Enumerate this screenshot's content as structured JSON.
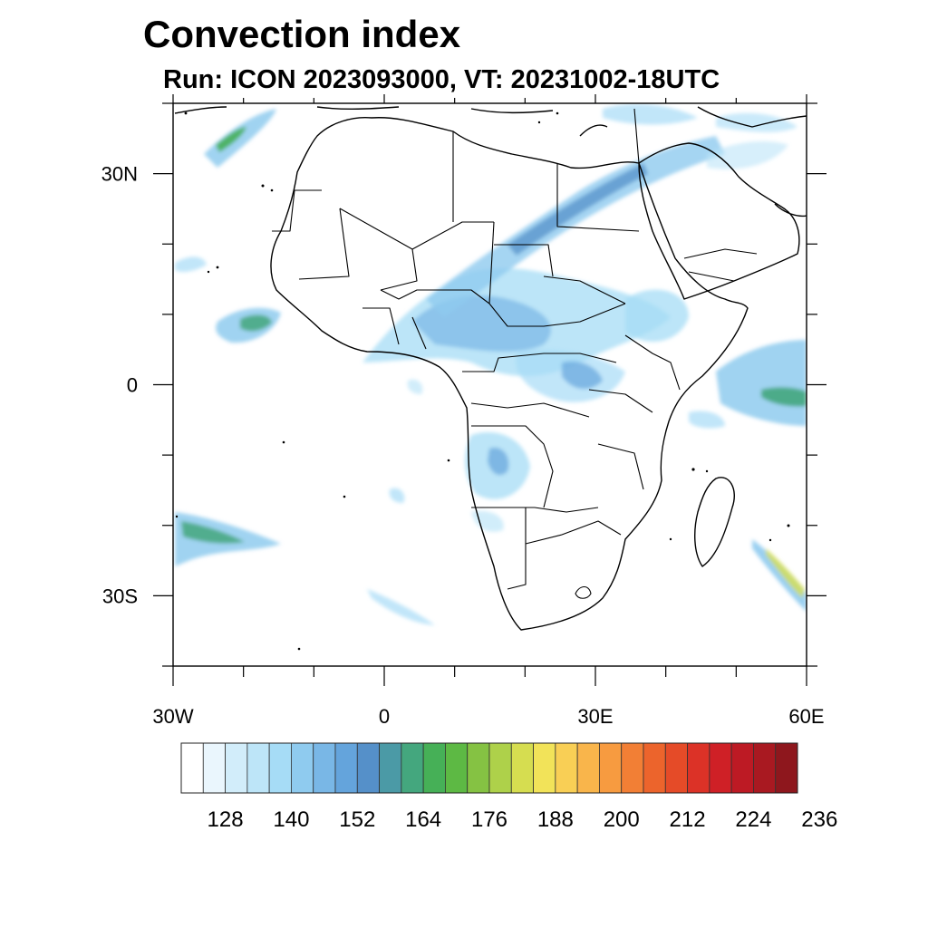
{
  "title": "Convection index",
  "subtitle": "Run: ICON 2023093000,  VT: 20231002-18UTC",
  "map": {
    "lon_range": [
      -30,
      60
    ],
    "lat_range": [
      -40,
      40
    ],
    "x_ticks": [
      {
        "lon": -30,
        "label": "30W"
      },
      {
        "lon": 0,
        "label": "0"
      },
      {
        "lon": 30,
        "label": "30E"
      },
      {
        "lon": 60,
        "label": "60E"
      }
    ],
    "y_ticks": [
      {
        "lat": 30,
        "label": "30N"
      },
      {
        "lat": 0,
        "label": "0"
      },
      {
        "lat": -30,
        "label": "30S"
      }
    ]
  },
  "colorbar": {
    "colors": [
      "#ffffff",
      "#eaf6fd",
      "#d2edfa",
      "#bde5f8",
      "#a6dcf6",
      "#8fcbef",
      "#79b7e6",
      "#64a4dc",
      "#5590c9",
      "#4b9aa6",
      "#44a77e",
      "#46b057",
      "#5db944",
      "#85c243",
      "#aed14a",
      "#d6dd50",
      "#f2e359",
      "#f9cf55",
      "#f9b54b",
      "#f79b40",
      "#f27f35",
      "#ec642c",
      "#e54b28",
      "#dc3227",
      "#cf2026",
      "#bd1a24",
      "#a91921",
      "#8e171d"
    ],
    "labels": [
      {
        "edge": 2,
        "text": "128"
      },
      {
        "edge": 5,
        "text": "140"
      },
      {
        "edge": 8,
        "text": "152"
      },
      {
        "edge": 11,
        "text": "164"
      },
      {
        "edge": 14,
        "text": "176"
      },
      {
        "edge": 17,
        "text": "188"
      },
      {
        "edge": 20,
        "text": "200"
      },
      {
        "edge": 23,
        "text": "212"
      },
      {
        "edge": 26,
        "text": "224"
      },
      {
        "edge": 29,
        "text": "236"
      }
    ]
  }
}
